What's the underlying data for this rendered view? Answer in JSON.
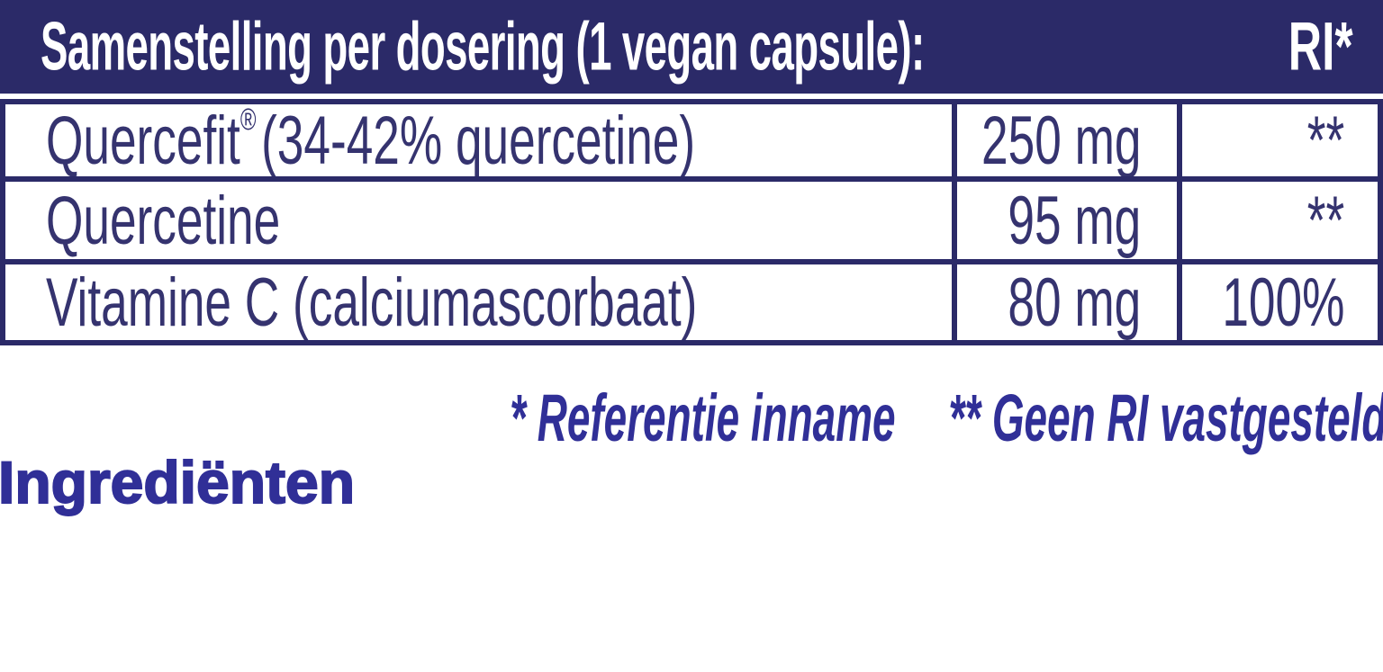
{
  "colors": {
    "navy_header": "#2b2a68",
    "table_ink": "#35336f",
    "indigo_accent": "#302f97",
    "background": "#ffffff"
  },
  "header": {
    "title": "Samenstelling per dosering (1 vegan capsule):",
    "ri_label": "RI*"
  },
  "table": {
    "columns": [
      "ingredient",
      "amount",
      "ri"
    ],
    "rows": [
      {
        "label_main": "Quercefit",
        "label_sup": "®",
        "label_tail": "(34-42% quercetine)",
        "amount": "250 mg",
        "ri": "**"
      },
      {
        "label_main": "Quercetine",
        "label_sup": "",
        "label_tail": "",
        "amount": "95 mg",
        "ri": "**"
      },
      {
        "label_main": "Vitamine C (calciumascorbaat)",
        "label_sup": "",
        "label_tail": "",
        "amount": "80 mg",
        "ri": "100%"
      }
    ]
  },
  "footnote": {
    "reference": "* Referentie inname",
    "no_ri": "** Geen RI vastgesteld"
  },
  "sections": {
    "ingredients_title": "Ingrediënten"
  }
}
